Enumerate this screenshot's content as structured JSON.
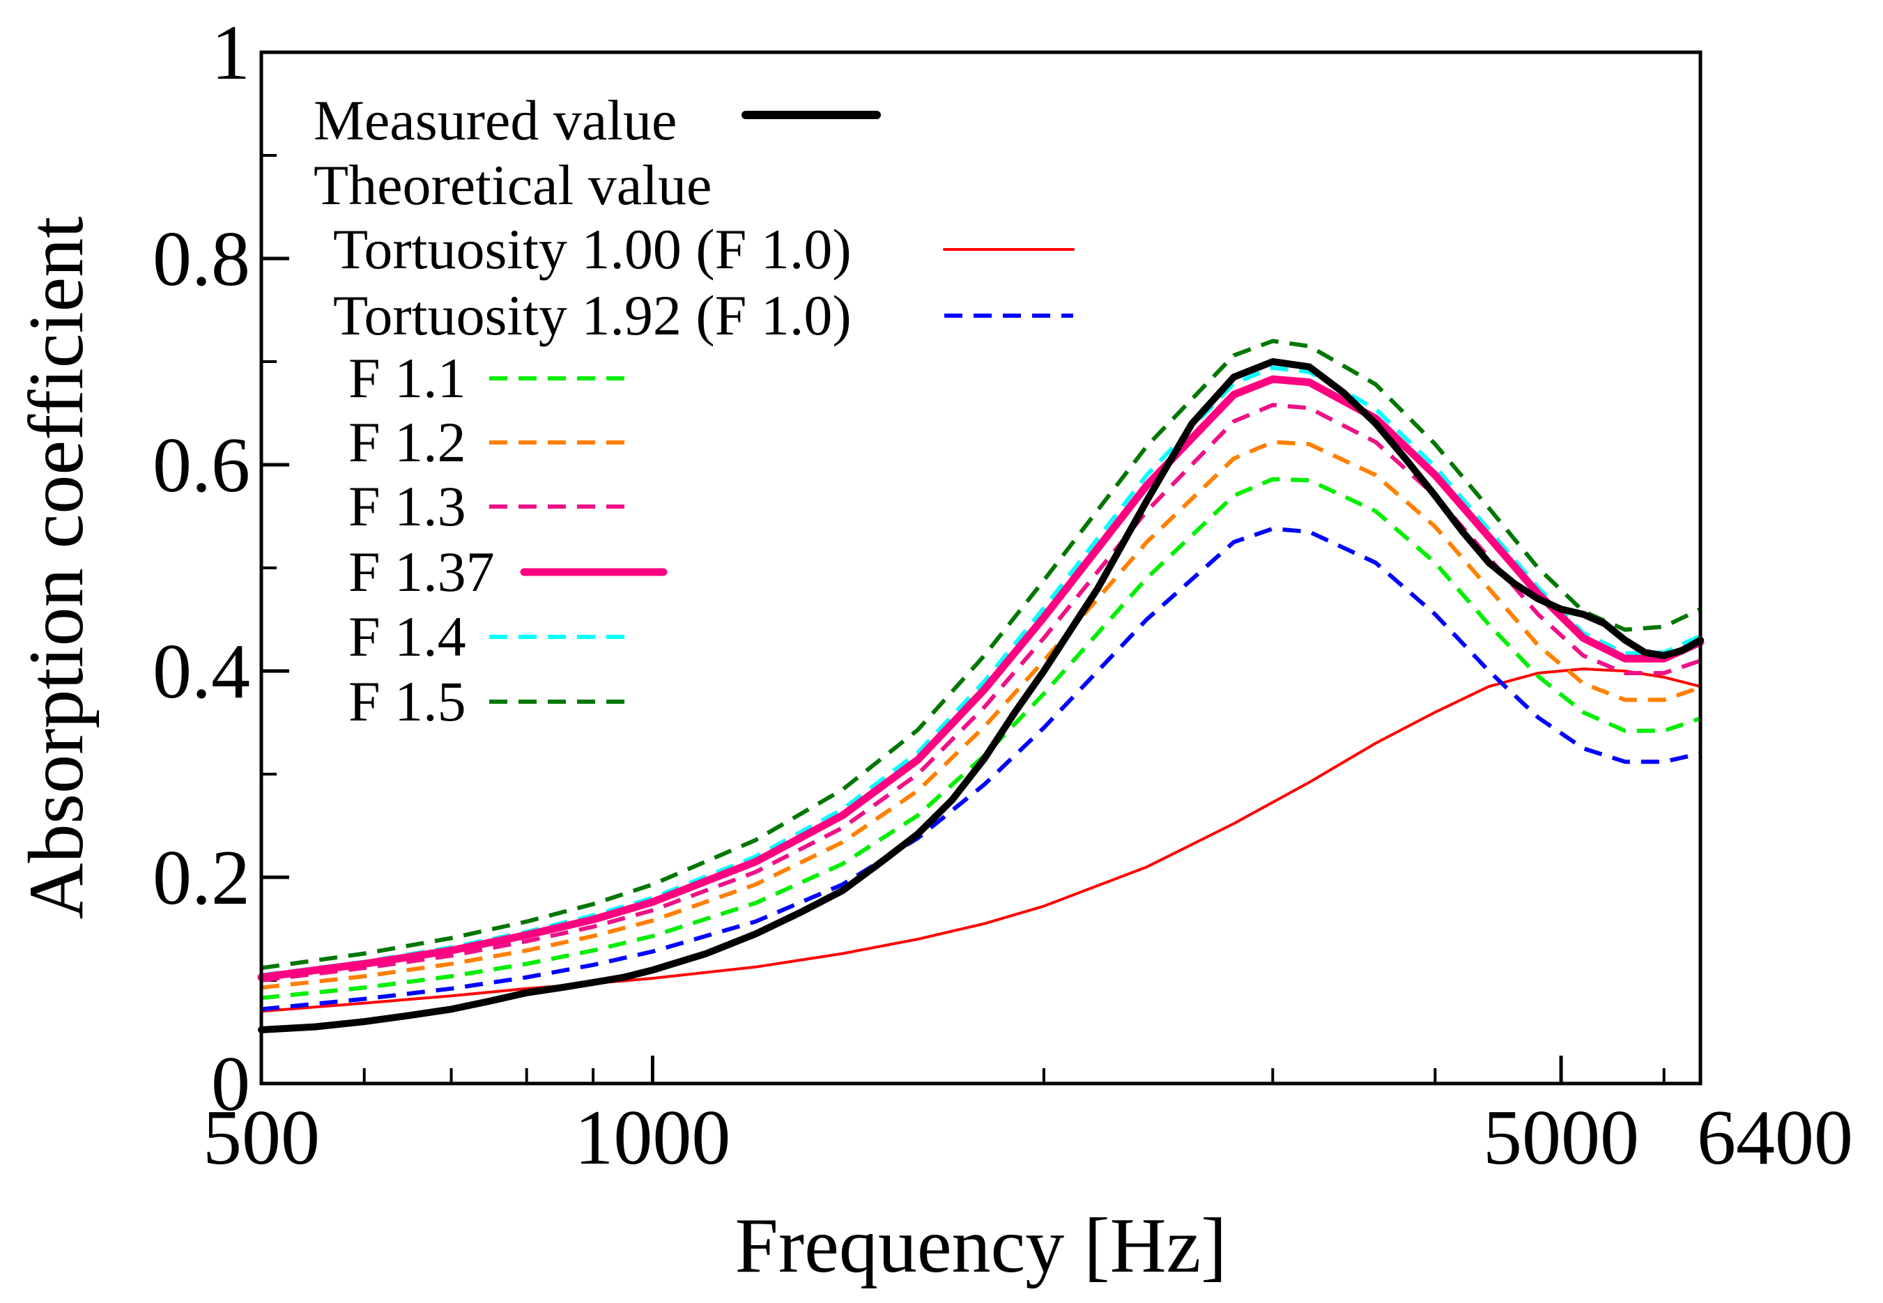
{
  "chart_data": {
    "type": "line",
    "title": "",
    "xlabel": "Frequency [Hz]",
    "ylabel": "Absorption coefficient",
    "xscale": "log",
    "xlim": [
      500,
      6400
    ],
    "ylim": [
      0,
      1
    ],
    "x_ticks": [
      500,
      1000,
      5000,
      6400
    ],
    "x_tick_labels": [
      "500",
      "1000",
      "5000",
      "6400"
    ],
    "y_ticks": [
      0,
      0.2,
      0.4,
      0.6,
      0.8,
      1
    ],
    "y_tick_labels": [
      "0",
      "0.2",
      "0.4",
      "0.6",
      "0.8",
      "1"
    ],
    "legend": {
      "measured_heading": "Measured value",
      "theoretical_heading": "Theoretical value",
      "position": "top-left"
    },
    "series": [
      {
        "name": "Measured value",
        "color": "#000000",
        "style": "solid-thick",
        "x": [
          500,
          550,
          600,
          650,
          700,
          750,
          800,
          850,
          900,
          950,
          1000,
          1100,
          1200,
          1300,
          1400,
          1500,
          1600,
          1700,
          1800,
          1900,
          2000,
          2200,
          2400,
          2600,
          2800,
          3000,
          3200,
          3400,
          3600,
          3800,
          4000,
          4200,
          4400,
          4600,
          4800,
          5000,
          5200,
          5400,
          5600,
          5800,
          6000,
          6200,
          6400
        ],
        "values": [
          0.052,
          0.055,
          0.06,
          0.066,
          0.072,
          0.08,
          0.088,
          0.093,
          0.098,
          0.103,
          0.11,
          0.126,
          0.145,
          0.166,
          0.187,
          0.215,
          0.242,
          0.275,
          0.315,
          0.36,
          0.4,
          0.48,
          0.565,
          0.64,
          0.685,
          0.7,
          0.695,
          0.67,
          0.64,
          0.605,
          0.57,
          0.535,
          0.505,
          0.485,
          0.47,
          0.46,
          0.455,
          0.446,
          0.43,
          0.418,
          0.415,
          0.42,
          0.43
        ]
      },
      {
        "name": "Tortuosity 1.00 (F 1.0)",
        "color": "#ff0000",
        "style": "solid",
        "x": [
          500,
          600,
          700,
          800,
          900,
          1000,
          1200,
          1400,
          1600,
          1800,
          2000,
          2400,
          2800,
          3200,
          3600,
          4000,
          4400,
          4800,
          5200,
          5600,
          6000,
          6400
        ],
        "values": [
          0.07,
          0.078,
          0.085,
          0.092,
          0.097,
          0.102,
          0.113,
          0.126,
          0.14,
          0.155,
          0.172,
          0.21,
          0.252,
          0.292,
          0.33,
          0.36,
          0.385,
          0.398,
          0.402,
          0.4,
          0.394,
          0.385
        ]
      },
      {
        "name": "Tortuosity 1.92 (F 1.0)",
        "color": "#0000ff",
        "style": "dashed",
        "x": [
          500,
          600,
          700,
          800,
          900,
          1000,
          1200,
          1400,
          1600,
          1800,
          2000,
          2400,
          2800,
          3000,
          3200,
          3600,
          4000,
          4400,
          4800,
          5200,
          5600,
          6000,
          6400
        ],
        "values": [
          0.072,
          0.082,
          0.092,
          0.103,
          0.115,
          0.128,
          0.157,
          0.193,
          0.238,
          0.29,
          0.345,
          0.45,
          0.525,
          0.538,
          0.535,
          0.505,
          0.455,
          0.4,
          0.355,
          0.325,
          0.312,
          0.312,
          0.32
        ]
      },
      {
        "name": "F 1.1",
        "color": "#00ee00",
        "style": "dashed",
        "x": [
          500,
          600,
          700,
          800,
          900,
          1000,
          1200,
          1400,
          1600,
          1800,
          2000,
          2400,
          2800,
          3000,
          3200,
          3600,
          4000,
          4400,
          4800,
          5200,
          5600,
          6000,
          6400
        ],
        "values": [
          0.083,
          0.093,
          0.104,
          0.116,
          0.129,
          0.143,
          0.175,
          0.213,
          0.26,
          0.318,
          0.378,
          0.49,
          0.57,
          0.586,
          0.585,
          0.555,
          0.505,
          0.445,
          0.395,
          0.36,
          0.342,
          0.342,
          0.354
        ]
      },
      {
        "name": "F 1.2",
        "color": "#ff8000",
        "style": "dashed",
        "x": [
          500,
          600,
          700,
          800,
          900,
          1000,
          1200,
          1400,
          1600,
          1800,
          2000,
          2400,
          2800,
          3000,
          3200,
          3600,
          4000,
          4400,
          4800,
          5200,
          5600,
          6000,
          6400
        ],
        "values": [
          0.093,
          0.104,
          0.116,
          0.129,
          0.143,
          0.158,
          0.193,
          0.234,
          0.284,
          0.346,
          0.41,
          0.525,
          0.606,
          0.622,
          0.62,
          0.59,
          0.54,
          0.48,
          0.425,
          0.388,
          0.372,
          0.372,
          0.384
        ]
      },
      {
        "name": "F 1.3",
        "color": "#ee1188",
        "style": "dashed",
        "x": [
          500,
          600,
          700,
          800,
          900,
          1000,
          1200,
          1400,
          1600,
          1800,
          2000,
          2400,
          2800,
          3000,
          3200,
          3600,
          4000,
          4400,
          4800,
          5200,
          5600,
          6000,
          6400
        ],
        "values": [
          0.1,
          0.112,
          0.124,
          0.138,
          0.152,
          0.168,
          0.205,
          0.248,
          0.3,
          0.365,
          0.432,
          0.555,
          0.642,
          0.658,
          0.655,
          0.622,
          0.57,
          0.51,
          0.455,
          0.415,
          0.398,
          0.398,
          0.41
        ]
      },
      {
        "name": "F 1.37",
        "color": "#ff0080",
        "style": "solid-thick",
        "x": [
          500,
          600,
          700,
          800,
          900,
          1000,
          1200,
          1400,
          1600,
          1800,
          2000,
          2400,
          2800,
          3000,
          3200,
          3600,
          4000,
          4400,
          4800,
          5200,
          5600,
          6000,
          6400
        ],
        "values": [
          0.103,
          0.116,
          0.129,
          0.144,
          0.159,
          0.176,
          0.215,
          0.26,
          0.314,
          0.382,
          0.452,
          0.58,
          0.668,
          0.683,
          0.68,
          0.645,
          0.59,
          0.53,
          0.475,
          0.432,
          0.412,
          0.412,
          0.428
        ]
      },
      {
        "name": "F 1.4",
        "color": "#00ffff",
        "style": "dashed",
        "x": [
          500,
          600,
          700,
          800,
          900,
          1000,
          1200,
          1400,
          1600,
          1800,
          2000,
          2400,
          2800,
          3000,
          3200,
          3600,
          4000,
          4400,
          4800,
          5200,
          5600,
          6000,
          6400
        ],
        "values": [
          0.105,
          0.118,
          0.132,
          0.147,
          0.163,
          0.18,
          0.22,
          0.266,
          0.321,
          0.39,
          0.461,
          0.59,
          0.679,
          0.694,
          0.69,
          0.654,
          0.598,
          0.537,
          0.481,
          0.437,
          0.417,
          0.418,
          0.434
        ]
      },
      {
        "name": "F 1.5",
        "color": "#007700",
        "style": "dashed",
        "x": [
          500,
          600,
          700,
          800,
          900,
          1000,
          1200,
          1400,
          1600,
          1800,
          2000,
          2400,
          2800,
          3000,
          3200,
          3600,
          4000,
          4400,
          4800,
          5200,
          5600,
          6000,
          6400
        ],
        "values": [
          0.112,
          0.126,
          0.141,
          0.157,
          0.174,
          0.193,
          0.236,
          0.285,
          0.343,
          0.415,
          0.488,
          0.618,
          0.706,
          0.72,
          0.715,
          0.678,
          0.62,
          0.558,
          0.5,
          0.458,
          0.44,
          0.443,
          0.46
        ]
      }
    ]
  }
}
